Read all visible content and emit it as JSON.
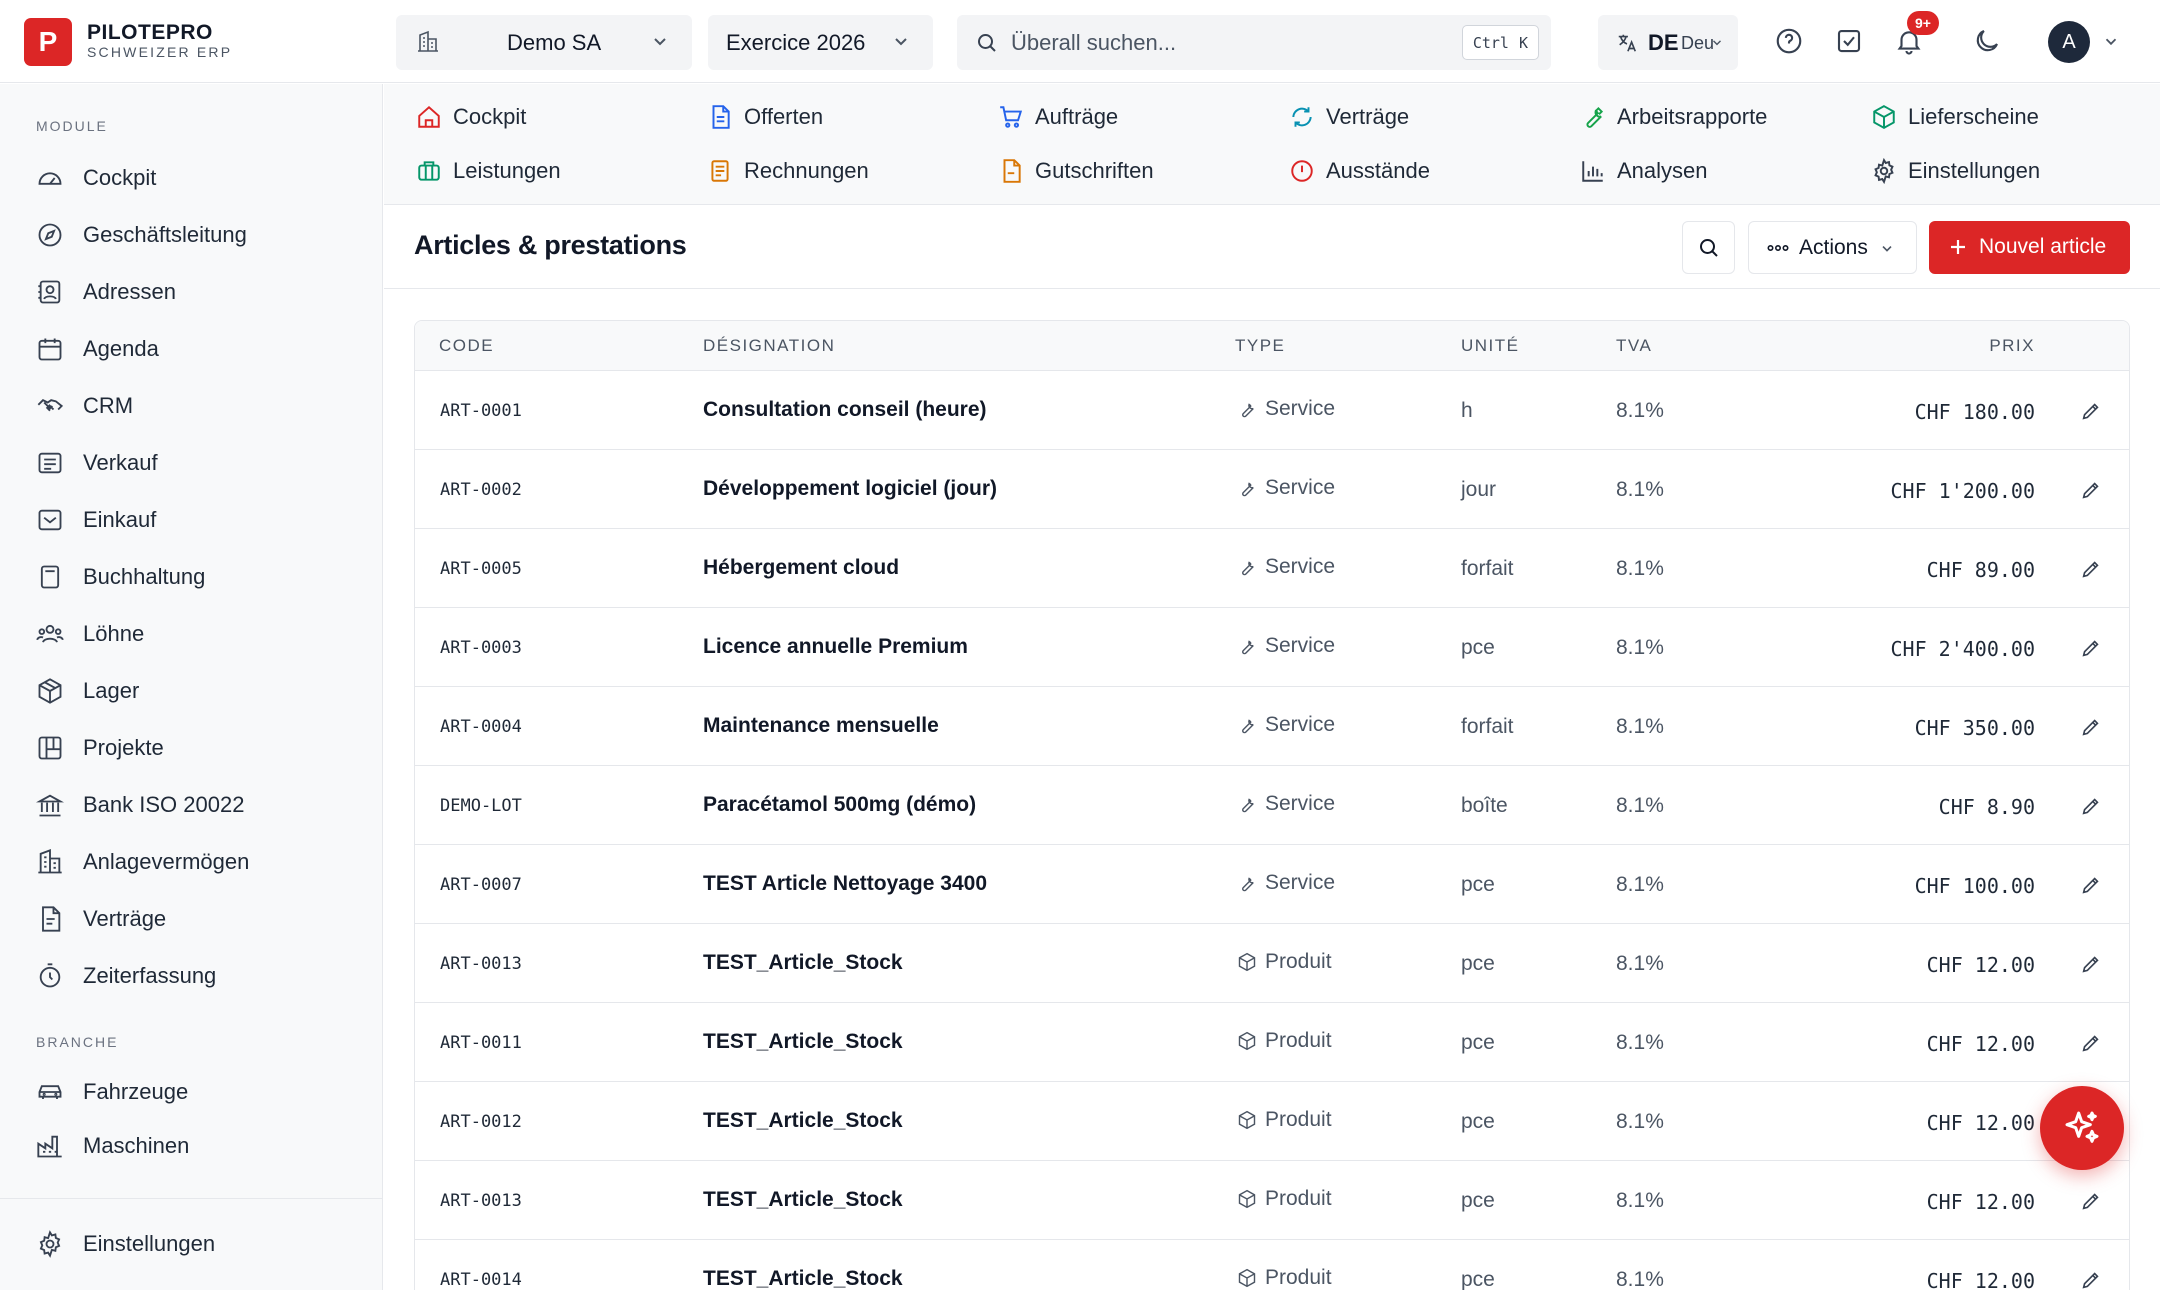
{
  "brand": {
    "logo_letter": "P",
    "name": "PILOTEPRO",
    "subtitle": "SCHWEIZER ERP"
  },
  "header": {
    "company": "Demo SA",
    "year": "Exercice 2026",
    "search_placeholder": "Überall suchen...",
    "shortcut_ctrl": "Ctrl",
    "shortcut_key": "K",
    "lang_code": "DE",
    "lang_name": "Deutsch",
    "notification_badge": "9+",
    "avatar_initial": "A"
  },
  "sidebar": {
    "section_module": "MODULE",
    "section_branche": "BRANCHE",
    "items": [
      {
        "label": "Cockpit",
        "icon": "gauge-icon"
      },
      {
        "label": "Geschäftsleitung",
        "icon": "compass-icon"
      },
      {
        "label": "Adressen",
        "icon": "contact-icon"
      },
      {
        "label": "Agenda",
        "icon": "calendar-icon"
      },
      {
        "label": "CRM",
        "icon": "handshake-icon"
      },
      {
        "label": "Verkauf",
        "icon": "receipt-icon"
      },
      {
        "label": "Einkauf",
        "icon": "inbox-icon"
      },
      {
        "label": "Buchhaltung",
        "icon": "calculator-icon"
      },
      {
        "label": "Löhne",
        "icon": "users-icon"
      },
      {
        "label": "Lager",
        "icon": "package-icon"
      },
      {
        "label": "Projekte",
        "icon": "kanban-icon"
      },
      {
        "label": "Bank ISO 20022",
        "icon": "bank-icon"
      },
      {
        "label": "Anlagevermögen",
        "icon": "building-icon"
      },
      {
        "label": "Verträge",
        "icon": "contract-icon"
      },
      {
        "label": "Zeiterfassung",
        "icon": "timer-icon"
      }
    ],
    "branche_items": [
      {
        "label": "Fahrzeuge",
        "icon": "car-icon"
      },
      {
        "label": "Maschinen",
        "icon": "factory-icon"
      }
    ],
    "settings_label": "Einstellungen"
  },
  "modules": [
    {
      "label": "Cockpit",
      "icon": "home-icon",
      "color": "#dc2626"
    },
    {
      "label": "Offerten",
      "icon": "document-icon",
      "color": "#2563eb"
    },
    {
      "label": "Aufträge",
      "icon": "cart-icon",
      "color": "#2563eb"
    },
    {
      "label": "Verträge",
      "icon": "refresh-icon",
      "color": "#0891b2"
    },
    {
      "label": "Arbeitsrapporte",
      "icon": "wrench-icon",
      "color": "#16a34a"
    },
    {
      "label": "Lieferscheine",
      "icon": "box-icon",
      "color": "#059669"
    },
    {
      "label": "Leistungen",
      "icon": "briefcase-icon",
      "color": "#059669"
    },
    {
      "label": "Rechnungen",
      "icon": "invoice-icon",
      "color": "#d97706"
    },
    {
      "label": "Gutschriften",
      "icon": "credit-note-icon",
      "color": "#d97706"
    },
    {
      "label": "Ausstände",
      "icon": "alert-icon",
      "color": "#dc2626"
    },
    {
      "label": "Analysen",
      "icon": "bar-chart-icon",
      "color": "#374151"
    },
    {
      "label": "Einstellungen",
      "icon": "gear-icon",
      "color": "#374151"
    }
  ],
  "page": {
    "title": "Articles & prestations",
    "actions_label": "Actions",
    "new_label": "Nouvel article"
  },
  "table": {
    "columns": {
      "code": "CODE",
      "name": "DÉSIGNATION",
      "type": "TYPE",
      "unit": "UNITÉ",
      "tva": "TVA",
      "price": "PRIX"
    },
    "rows": [
      {
        "code": "ART-0001",
        "name": "Consultation conseil (heure)",
        "type": "Service",
        "unit": "h",
        "tva": "8.1%",
        "price": "CHF 180.00"
      },
      {
        "code": "ART-0002",
        "name": "Développement logiciel (jour)",
        "type": "Service",
        "unit": "jour",
        "tva": "8.1%",
        "price": "CHF 1'200.00"
      },
      {
        "code": "ART-0005",
        "name": "Hébergement cloud",
        "type": "Service",
        "unit": "forfait",
        "tva": "8.1%",
        "price": "CHF 89.00"
      },
      {
        "code": "ART-0003",
        "name": "Licence annuelle Premium",
        "type": "Service",
        "unit": "pce",
        "tva": "8.1%",
        "price": "CHF 2'400.00"
      },
      {
        "code": "ART-0004",
        "name": "Maintenance mensuelle",
        "type": "Service",
        "unit": "forfait",
        "tva": "8.1%",
        "price": "CHF 350.00"
      },
      {
        "code": "DEMO-LOT",
        "name": "Paracétamol 500mg (démo)",
        "type": "Service",
        "unit": "boîte",
        "tva": "8.1%",
        "price": "CHF 8.90"
      },
      {
        "code": "ART-0007",
        "name": "TEST Article Nettoyage 3400",
        "type": "Service",
        "unit": "pce",
        "tva": "8.1%",
        "price": "CHF 100.00"
      },
      {
        "code": "ART-0013",
        "name": "TEST_Article_Stock",
        "type": "Produit",
        "unit": "pce",
        "tva": "8.1%",
        "price": "CHF 12.00"
      },
      {
        "code": "ART-0011",
        "name": "TEST_Article_Stock",
        "type": "Produit",
        "unit": "pce",
        "tva": "8.1%",
        "price": "CHF 12.00"
      },
      {
        "code": "ART-0012",
        "name": "TEST_Article_Stock",
        "type": "Produit",
        "unit": "pce",
        "tva": "8.1%",
        "price": "CHF 12.00"
      },
      {
        "code": "ART-0013",
        "name": "TEST_Article_Stock",
        "type": "Produit",
        "unit": "pce",
        "tva": "8.1%",
        "price": "CHF 12.00"
      },
      {
        "code": "ART-0014",
        "name": "TEST_Article_Stock",
        "type": "Produit",
        "unit": "pce",
        "tva": "8.1%",
        "price": "CHF 12.00"
      }
    ]
  },
  "colors": {
    "accent": "#dc2626",
    "sidebar_bg": "#f8f9fa",
    "border": "#e5e7eb"
  }
}
